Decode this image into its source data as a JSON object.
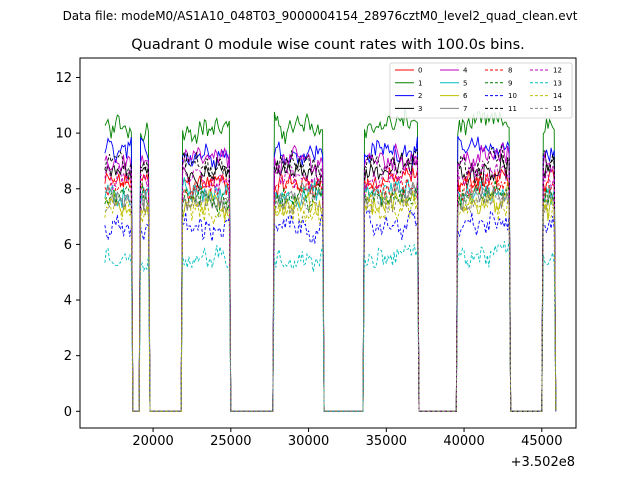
{
  "figure": {
    "suptitle": "Data file: modeM0/AS1A10_048T03_9000004154_28976cztM0_level2_quad_clean.evt",
    "offset_label": "+3.502e8"
  },
  "chart_data": {
    "type": "line",
    "title": "Quadrant 0 module wise count rates with 100.0s bins.",
    "xlabel": "",
    "ylabel": "",
    "xlim": [
      15300,
      47200
    ],
    "ylim": [
      -0.6,
      12.7
    ],
    "x_offset": 350200000,
    "x_ticks": [
      20000,
      25000,
      30000,
      35000,
      40000,
      45000
    ],
    "x_tick_labels": [
      "20000",
      "25000",
      "30000",
      "35000",
      "40000",
      "45000"
    ],
    "y_ticks": [
      0,
      2,
      4,
      6,
      8,
      10,
      12
    ],
    "y_tick_labels": [
      "0",
      "2",
      "4",
      "6",
      "8",
      "10",
      "12"
    ],
    "legend_position": "top-right",
    "time_segments": [
      {
        "start": 16900,
        "end": 18600
      },
      {
        "start": 19200,
        "end": 19700
      },
      {
        "start": 21900,
        "end": 24900
      },
      {
        "start": 27800,
        "end": 30900
      },
      {
        "start": 33600,
        "end": 37000
      },
      {
        "start": 39600,
        "end": 42900
      },
      {
        "start": 45100,
        "end": 45800
      }
    ],
    "gap_value": 0,
    "series": [
      {
        "name": "0",
        "color": "#ff0000",
        "dash": "solid",
        "mean": 8.2
      },
      {
        "name": "1",
        "color": "#008000",
        "dash": "solid",
        "mean": 10.2
      },
      {
        "name": "2",
        "color": "#0000ff",
        "dash": "solid",
        "mean": 9.3
      },
      {
        "name": "3",
        "color": "#000000",
        "dash": "solid",
        "mean": 8.6
      },
      {
        "name": "4",
        "color": "#bf00bf",
        "dash": "solid",
        "mean": 9.0
      },
      {
        "name": "5",
        "color": "#00bfbf",
        "dash": "solid",
        "mean": 7.8
      },
      {
        "name": "6",
        "color": "#bfbf00",
        "dash": "solid",
        "mean": 7.4
      },
      {
        "name": "7",
        "color": "#808080",
        "dash": "solid",
        "mean": 7.6
      },
      {
        "name": "8",
        "color": "#ff0000",
        "dash": "dashed",
        "mean": 8.0
      },
      {
        "name": "9",
        "color": "#008000",
        "dash": "dashed",
        "mean": 7.7
      },
      {
        "name": "10",
        "color": "#0000ff",
        "dash": "dashed",
        "mean": 6.6
      },
      {
        "name": "11",
        "color": "#000000",
        "dash": "dashed",
        "mean": 8.9
      },
      {
        "name": "12",
        "color": "#bf00bf",
        "dash": "dashed",
        "mean": 8.4
      },
      {
        "name": "13",
        "color": "#00bfbf",
        "dash": "dashed",
        "mean": 5.5
      },
      {
        "name": "14",
        "color": "#bfbf00",
        "dash": "dashed",
        "mean": 7.2
      },
      {
        "name": "15",
        "color": "#808080",
        "dash": "dashed",
        "mean": 7.5
      }
    ]
  }
}
